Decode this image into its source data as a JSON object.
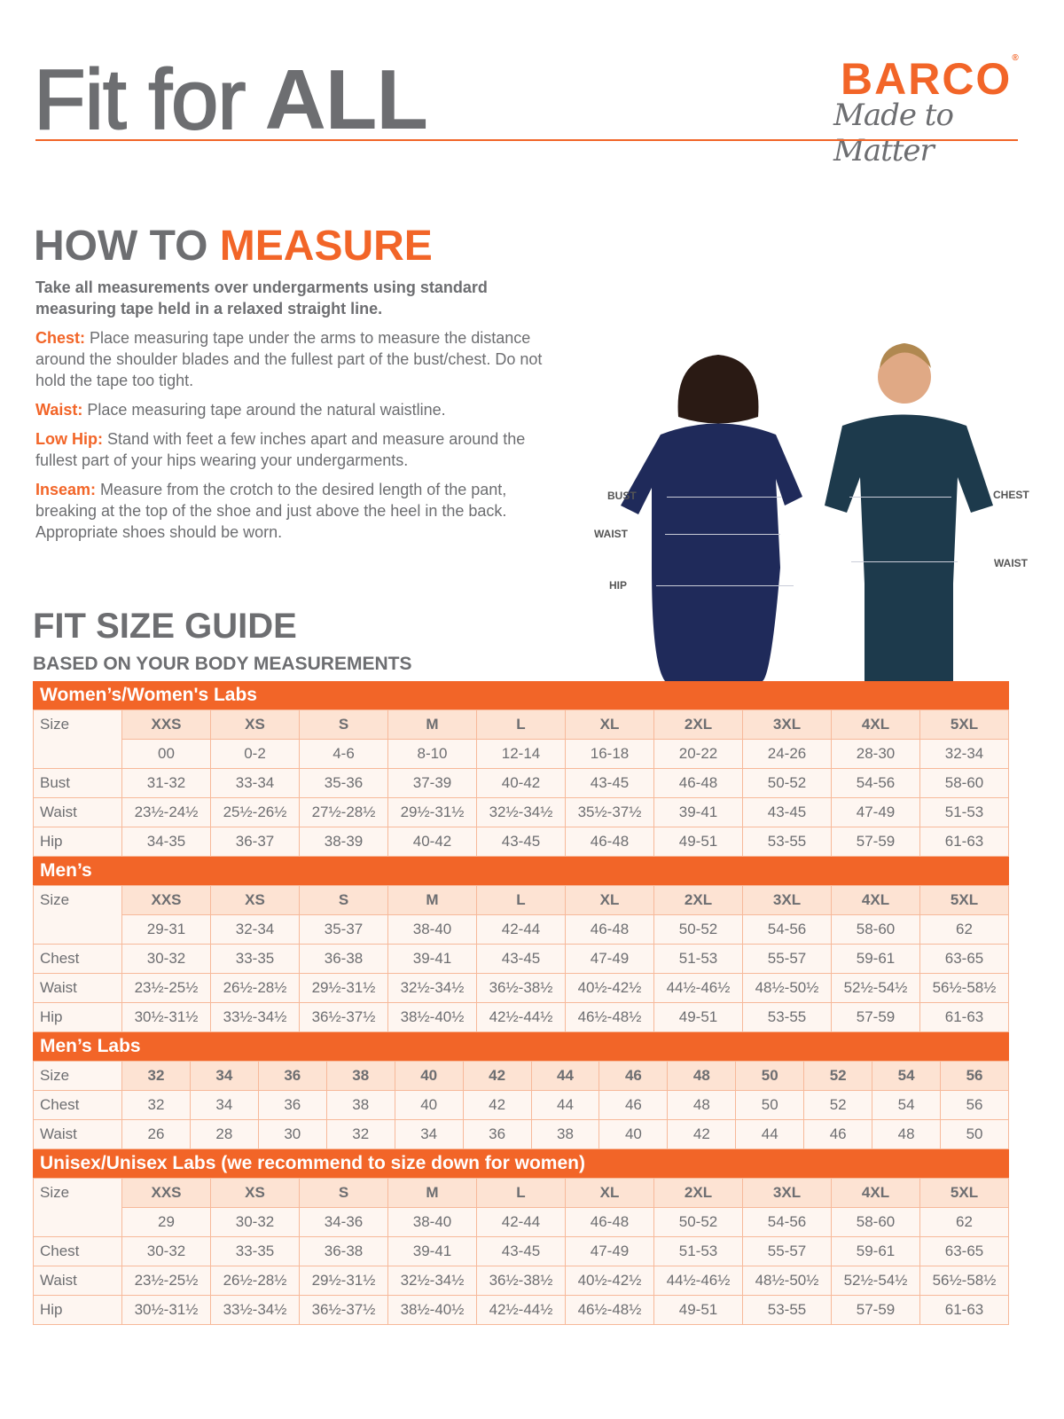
{
  "header": {
    "title_light": "Fit for",
    "title_bold": "ALL",
    "logo_brand": "BARCO",
    "logo_tagline": "Made to Matter",
    "logo_mark": "®"
  },
  "how_to_measure": {
    "heading_gray": "HOW TO",
    "heading_orange": "MEASURE",
    "lead": "Take all measurements over undergarments using standard measuring tape held in a relaxed straight line.",
    "items": [
      {
        "term": "Chest:",
        "text": "Place measuring tape under the arms to measure the distance around the shoulder blades and the fullest part of the bust/chest. Do not hold the tape too tight."
      },
      {
        "term": "Waist:",
        "text": "Place measuring tape around the natural waistline."
      },
      {
        "term": "Low Hip:",
        "text": "Stand with feet a few inches apart and measure around the fullest part of your hips wearing your undergarments."
      },
      {
        "term": "Inseam:",
        "text": "Measure from the crotch to the desired length of the pant, breaking at the top of the shoe and just above the heel in the back. Appropriate shoes should be worn."
      }
    ]
  },
  "photo_labels": {
    "bust": "BUST",
    "waist_w": "WAIST",
    "hip": "HIP",
    "chest": "CHEST",
    "waist_m": "WAIST"
  },
  "fit_guide": {
    "heading": "FIT SIZE GUIDE",
    "subheading": "BASED ON YOUR BODY MEASUREMENTS"
  },
  "colors": {
    "accent": "#f26528",
    "text": "#6d6e71",
    "header_cell": "#fde3d3",
    "cell": "#fef6f1"
  },
  "tables": [
    {
      "title": "Women’s/Women's Labs",
      "size_label": "Size",
      "sizes": [
        "XXS",
        "XS",
        "S",
        "M",
        "L",
        "XL",
        "2XL",
        "3XL",
        "4XL",
        "5XL"
      ],
      "numeric": [
        "00",
        "0-2",
        "4-6",
        "8-10",
        "12-14",
        "16-18",
        "20-22",
        "24-26",
        "28-30",
        "32-34"
      ],
      "rows": [
        {
          "label": "Bust",
          "values": [
            "31-32",
            "33-34",
            "35-36",
            "37-39",
            "40-42",
            "43-45",
            "46-48",
            "50-52",
            "54-56",
            "58-60"
          ]
        },
        {
          "label": "Waist",
          "values": [
            "23½-24½",
            "25½-26½",
            "27½-28½",
            "29½-31½",
            "32½-34½",
            "35½-37½",
            "39-41",
            "43-45",
            "47-49",
            "51-53"
          ]
        },
        {
          "label": "Hip",
          "values": [
            "34-35",
            "36-37",
            "38-39",
            "40-42",
            "43-45",
            "46-48",
            "49-51",
            "53-55",
            "57-59",
            "61-63"
          ]
        }
      ]
    },
    {
      "title": "Men’s",
      "size_label": "Size",
      "sizes": [
        "XXS",
        "XS",
        "S",
        "M",
        "L",
        "XL",
        "2XL",
        "3XL",
        "4XL",
        "5XL"
      ],
      "numeric": [
        "29-31",
        "32-34",
        "35-37",
        "38-40",
        "42-44",
        "46-48",
        "50-52",
        "54-56",
        "58-60",
        "62"
      ],
      "rows": [
        {
          "label": "Chest",
          "values": [
            "30-32",
            "33-35",
            "36-38",
            "39-41",
            "43-45",
            "47-49",
            "51-53",
            "55-57",
            "59-61",
            "63-65"
          ]
        },
        {
          "label": "Waist",
          "values": [
            "23½-25½",
            "26½-28½",
            "29½-31½",
            "32½-34½",
            "36½-38½",
            "40½-42½",
            "44½-46½",
            "48½-50½",
            "52½-54½",
            "56½-58½"
          ]
        },
        {
          "label": "Hip",
          "values": [
            "30½-31½",
            "33½-34½",
            "36½-37½",
            "38½-40½",
            "42½-44½",
            "46½-48½",
            "49-51",
            "53-55",
            "57-59",
            "61-63"
          ]
        }
      ]
    },
    {
      "title": "Men’s Labs",
      "size_label": "Size",
      "sizes": [
        "32",
        "34",
        "36",
        "38",
        "40",
        "42",
        "44",
        "46",
        "48",
        "50",
        "52",
        "54",
        "56"
      ],
      "rows": [
        {
          "label": "Chest",
          "values": [
            "32",
            "34",
            "36",
            "38",
            "40",
            "42",
            "44",
            "46",
            "48",
            "50",
            "52",
            "54",
            "56"
          ]
        },
        {
          "label": "Waist",
          "values": [
            "26",
            "28",
            "30",
            "32",
            "34",
            "36",
            "38",
            "40",
            "42",
            "44",
            "46",
            "48",
            "50"
          ]
        }
      ]
    },
    {
      "title": "Unisex/Unisex Labs (we recommend to size down for women)",
      "size_label": "Size",
      "sizes": [
        "XXS",
        "XS",
        "S",
        "M",
        "L",
        "XL",
        "2XL",
        "3XL",
        "4XL",
        "5XL"
      ],
      "numeric": [
        "29",
        "30-32",
        "34-36",
        "38-40",
        "42-44",
        "46-48",
        "50-52",
        "54-56",
        "58-60",
        "62"
      ],
      "rows": [
        {
          "label": "Chest",
          "values": [
            "30-32",
            "33-35",
            "36-38",
            "39-41",
            "43-45",
            "47-49",
            "51-53",
            "55-57",
            "59-61",
            "63-65"
          ]
        },
        {
          "label": "Waist",
          "values": [
            "23½-25½",
            "26½-28½",
            "29½-31½",
            "32½-34½",
            "36½-38½",
            "40½-42½",
            "44½-46½",
            "48½-50½",
            "52½-54½",
            "56½-58½"
          ]
        },
        {
          "label": "Hip",
          "values": [
            "30½-31½",
            "33½-34½",
            "36½-37½",
            "38½-40½",
            "42½-44½",
            "46½-48½",
            "49-51",
            "53-55",
            "57-59",
            "61-63"
          ]
        }
      ]
    }
  ]
}
